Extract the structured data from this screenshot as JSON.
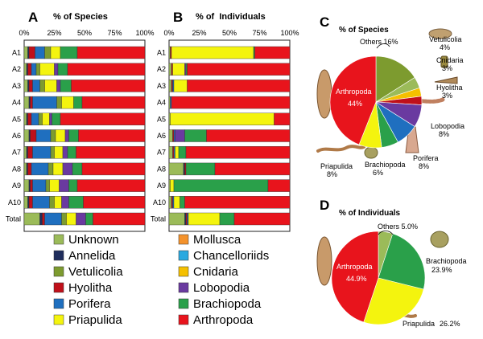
{
  "categories": [
    "Unknown",
    "Annelida",
    "Vetulicolia",
    "Hyolitha",
    "Porifera",
    "Priapulida",
    "Mollusca",
    "Chancelloriids",
    "Cnidaria",
    "Lobopodia",
    "Brachiopoda",
    "Arthropoda"
  ],
  "colors": {
    "Unknown": "#9bbb59",
    "Annelida": "#1f2d5c",
    "Vetulicolia": "#7d9b2f",
    "Hyolitha": "#c0101a",
    "Porifera": "#1f6fbf",
    "Priapulida": "#f4f40e",
    "Mollusca": "#f4922b",
    "Chancelloriids": "#2aa9e0",
    "Cnidaria": "#f5c000",
    "Lobopodia": "#6a3aa0",
    "Brachiopoda": "#2aa04a",
    "Arthropoda": "#e8141c"
  },
  "legend": {
    "col1": [
      "Unknown",
      "Annelida",
      "Vetulicolia",
      "Hyolitha",
      "Porifera",
      "Priapulida"
    ],
    "col2": [
      "Mollusca",
      "Chancelloriids",
      "Cnidaria",
      "Lobopodia",
      "Brachiopoda",
      "Arthropoda"
    ]
  },
  "chart_data": [
    {
      "type": "bar",
      "panel": "A",
      "title": "% of Species",
      "orientation": "horizontal-stacked",
      "xlim": [
        0,
        100
      ],
      "ticks": [
        "0%",
        "25%",
        "50%",
        "75%",
        "100%"
      ],
      "rows": [
        "A1",
        "A2",
        "A3",
        "A4",
        "A5",
        "A6",
        "A7",
        "A8",
        "A9",
        "A10",
        "Total"
      ],
      "stack_order": [
        "Unknown",
        "Annelida",
        "Hyolitha",
        "Porifera",
        "Vetulicolia",
        "Priapulida",
        "Lobopodia",
        "Brachiopoda",
        "Arthropoda"
      ],
      "series": [
        {
          "name": "Unknown",
          "values": [
            3,
            2,
            3,
            4,
            2,
            4,
            2,
            2,
            4,
            3,
            13
          ]
        },
        {
          "name": "Annelida",
          "values": [
            1,
            1,
            1,
            1,
            1,
            1,
            1,
            1,
            1,
            1,
            2
          ]
        },
        {
          "name": "Hyolitha",
          "values": [
            5,
            3,
            3,
            2,
            3,
            5,
            4,
            3,
            2,
            3,
            2
          ]
        },
        {
          "name": "Porifera",
          "values": [
            8,
            4,
            6,
            20,
            6,
            12,
            15,
            14,
            11,
            14,
            14
          ]
        },
        {
          "name": "Vetulicolia",
          "values": [
            5,
            3,
            4,
            4,
            3,
            4,
            3,
            4,
            3,
            4,
            4
          ]
        },
        {
          "name": "Priapulida",
          "values": [
            8,
            12,
            10,
            10,
            6,
            8,
            7,
            8,
            8,
            6,
            8
          ]
        },
        {
          "name": "Lobopodia",
          "values": [
            0,
            3,
            3,
            0,
            2,
            3,
            4,
            8,
            8,
            6,
            8
          ]
        },
        {
          "name": "Brachiopoda",
          "values": [
            14,
            8,
            9,
            7,
            7,
            8,
            7,
            8,
            7,
            12,
            6
          ]
        },
        {
          "name": "Arthropoda",
          "values": [
            56,
            64,
            61,
            52,
            70,
            55,
            57,
            52,
            56,
            51,
            43
          ]
        }
      ]
    },
    {
      "type": "bar",
      "panel": "B",
      "title": "% of  Individuals",
      "orientation": "horizontal-stacked",
      "xlim": [
        0,
        100
      ],
      "ticks": [
        "0%",
        "25%",
        "50%",
        "75%",
        "100%"
      ],
      "rows": [
        "A1",
        "A2",
        "A3",
        "A4",
        "A5",
        "A6",
        "A7",
        "A8",
        "A9",
        "A10",
        "Total"
      ],
      "stack_order": [
        "Unknown",
        "Annelida",
        "Hyolitha",
        "Porifera",
        "Vetulicolia",
        "Priapulida",
        "Lobopodia",
        "Brachiopoda",
        "Arthropoda"
      ],
      "series": [
        {
          "name": "Unknown",
          "values": [
            1,
            2,
            2,
            1,
            1,
            3,
            3,
            12,
            1,
            2,
            13
          ]
        },
        {
          "name": "Annelida",
          "values": [
            0,
            0,
            0,
            0,
            0,
            0,
            0,
            1,
            0,
            0,
            1
          ]
        },
        {
          "name": "Hyolitha",
          "values": [
            1,
            1,
            1,
            0,
            0,
            1,
            1,
            1,
            0,
            1,
            1
          ]
        },
        {
          "name": "Porifera",
          "values": [
            0,
            0,
            1,
            1,
            0,
            1,
            1,
            0,
            0,
            1,
            1
          ]
        },
        {
          "name": "Vetulicolia",
          "values": [
            0,
            0,
            0,
            0,
            0,
            0,
            0,
            0,
            0,
            0,
            0
          ]
        },
        {
          "name": "Priapulida",
          "values": [
            68,
            10,
            11,
            0,
            86,
            0,
            3,
            0,
            3,
            5,
            26
          ]
        },
        {
          "name": "Lobopodia",
          "values": [
            0,
            1,
            0,
            0,
            0,
            8,
            0,
            0,
            0,
            0,
            0
          ]
        },
        {
          "name": "Brachiopoda",
          "values": [
            1,
            1,
            0,
            0,
            0,
            18,
            6,
            24,
            78,
            4,
            12
          ]
        },
        {
          "name": "Arthropoda",
          "values": [
            29,
            85,
            85,
            98,
            13,
            69,
            86,
            62,
            18,
            87,
            46
          ]
        }
      ]
    },
    {
      "type": "pie",
      "panel": "C",
      "title": "% of Species",
      "slices": [
        {
          "label": "Others",
          "value": 16,
          "display": "Others 16%",
          "color": "#7d9b2f"
        },
        {
          "label": "Vetulicolia",
          "value": 4,
          "display": "4%",
          "color": "#9bbb59"
        },
        {
          "label": "Cnidaria",
          "value": 3,
          "display": "3%",
          "color": "#f5c000"
        },
        {
          "label": "Hyolitha",
          "value": 3,
          "display": "3%",
          "color": "#c0101a"
        },
        {
          "label": "Lobopodia",
          "value": 8,
          "display": "8%",
          "color": "#6a3aa0"
        },
        {
          "label": "Porifera",
          "value": 8,
          "display": "8%",
          "color": "#1f6fbf"
        },
        {
          "label": "Brachiopoda",
          "value": 6,
          "display": "6%",
          "color": "#2aa04a"
        },
        {
          "label": "Priapulida",
          "value": 8,
          "display": "8%",
          "color": "#f4f40e"
        },
        {
          "label": "Arthropoda",
          "value": 44,
          "display": "44%",
          "color": "#e8141c"
        }
      ]
    },
    {
      "type": "pie",
      "panel": "D",
      "title": "% of Individuals",
      "slices": [
        {
          "label": "Others",
          "value": 5.0,
          "display": "Others 5.0%",
          "color": "#9bbb59"
        },
        {
          "label": "Brachiopoda",
          "value": 23.9,
          "display": "23.9%",
          "color": "#2aa04a"
        },
        {
          "label": "Priapulida",
          "value": 26.2,
          "display": "26.2%",
          "color": "#f4f40e"
        },
        {
          "label": "Arthropoda",
          "value": 44.9,
          "display": "44.9%",
          "color": "#e8141c"
        }
      ]
    }
  ]
}
